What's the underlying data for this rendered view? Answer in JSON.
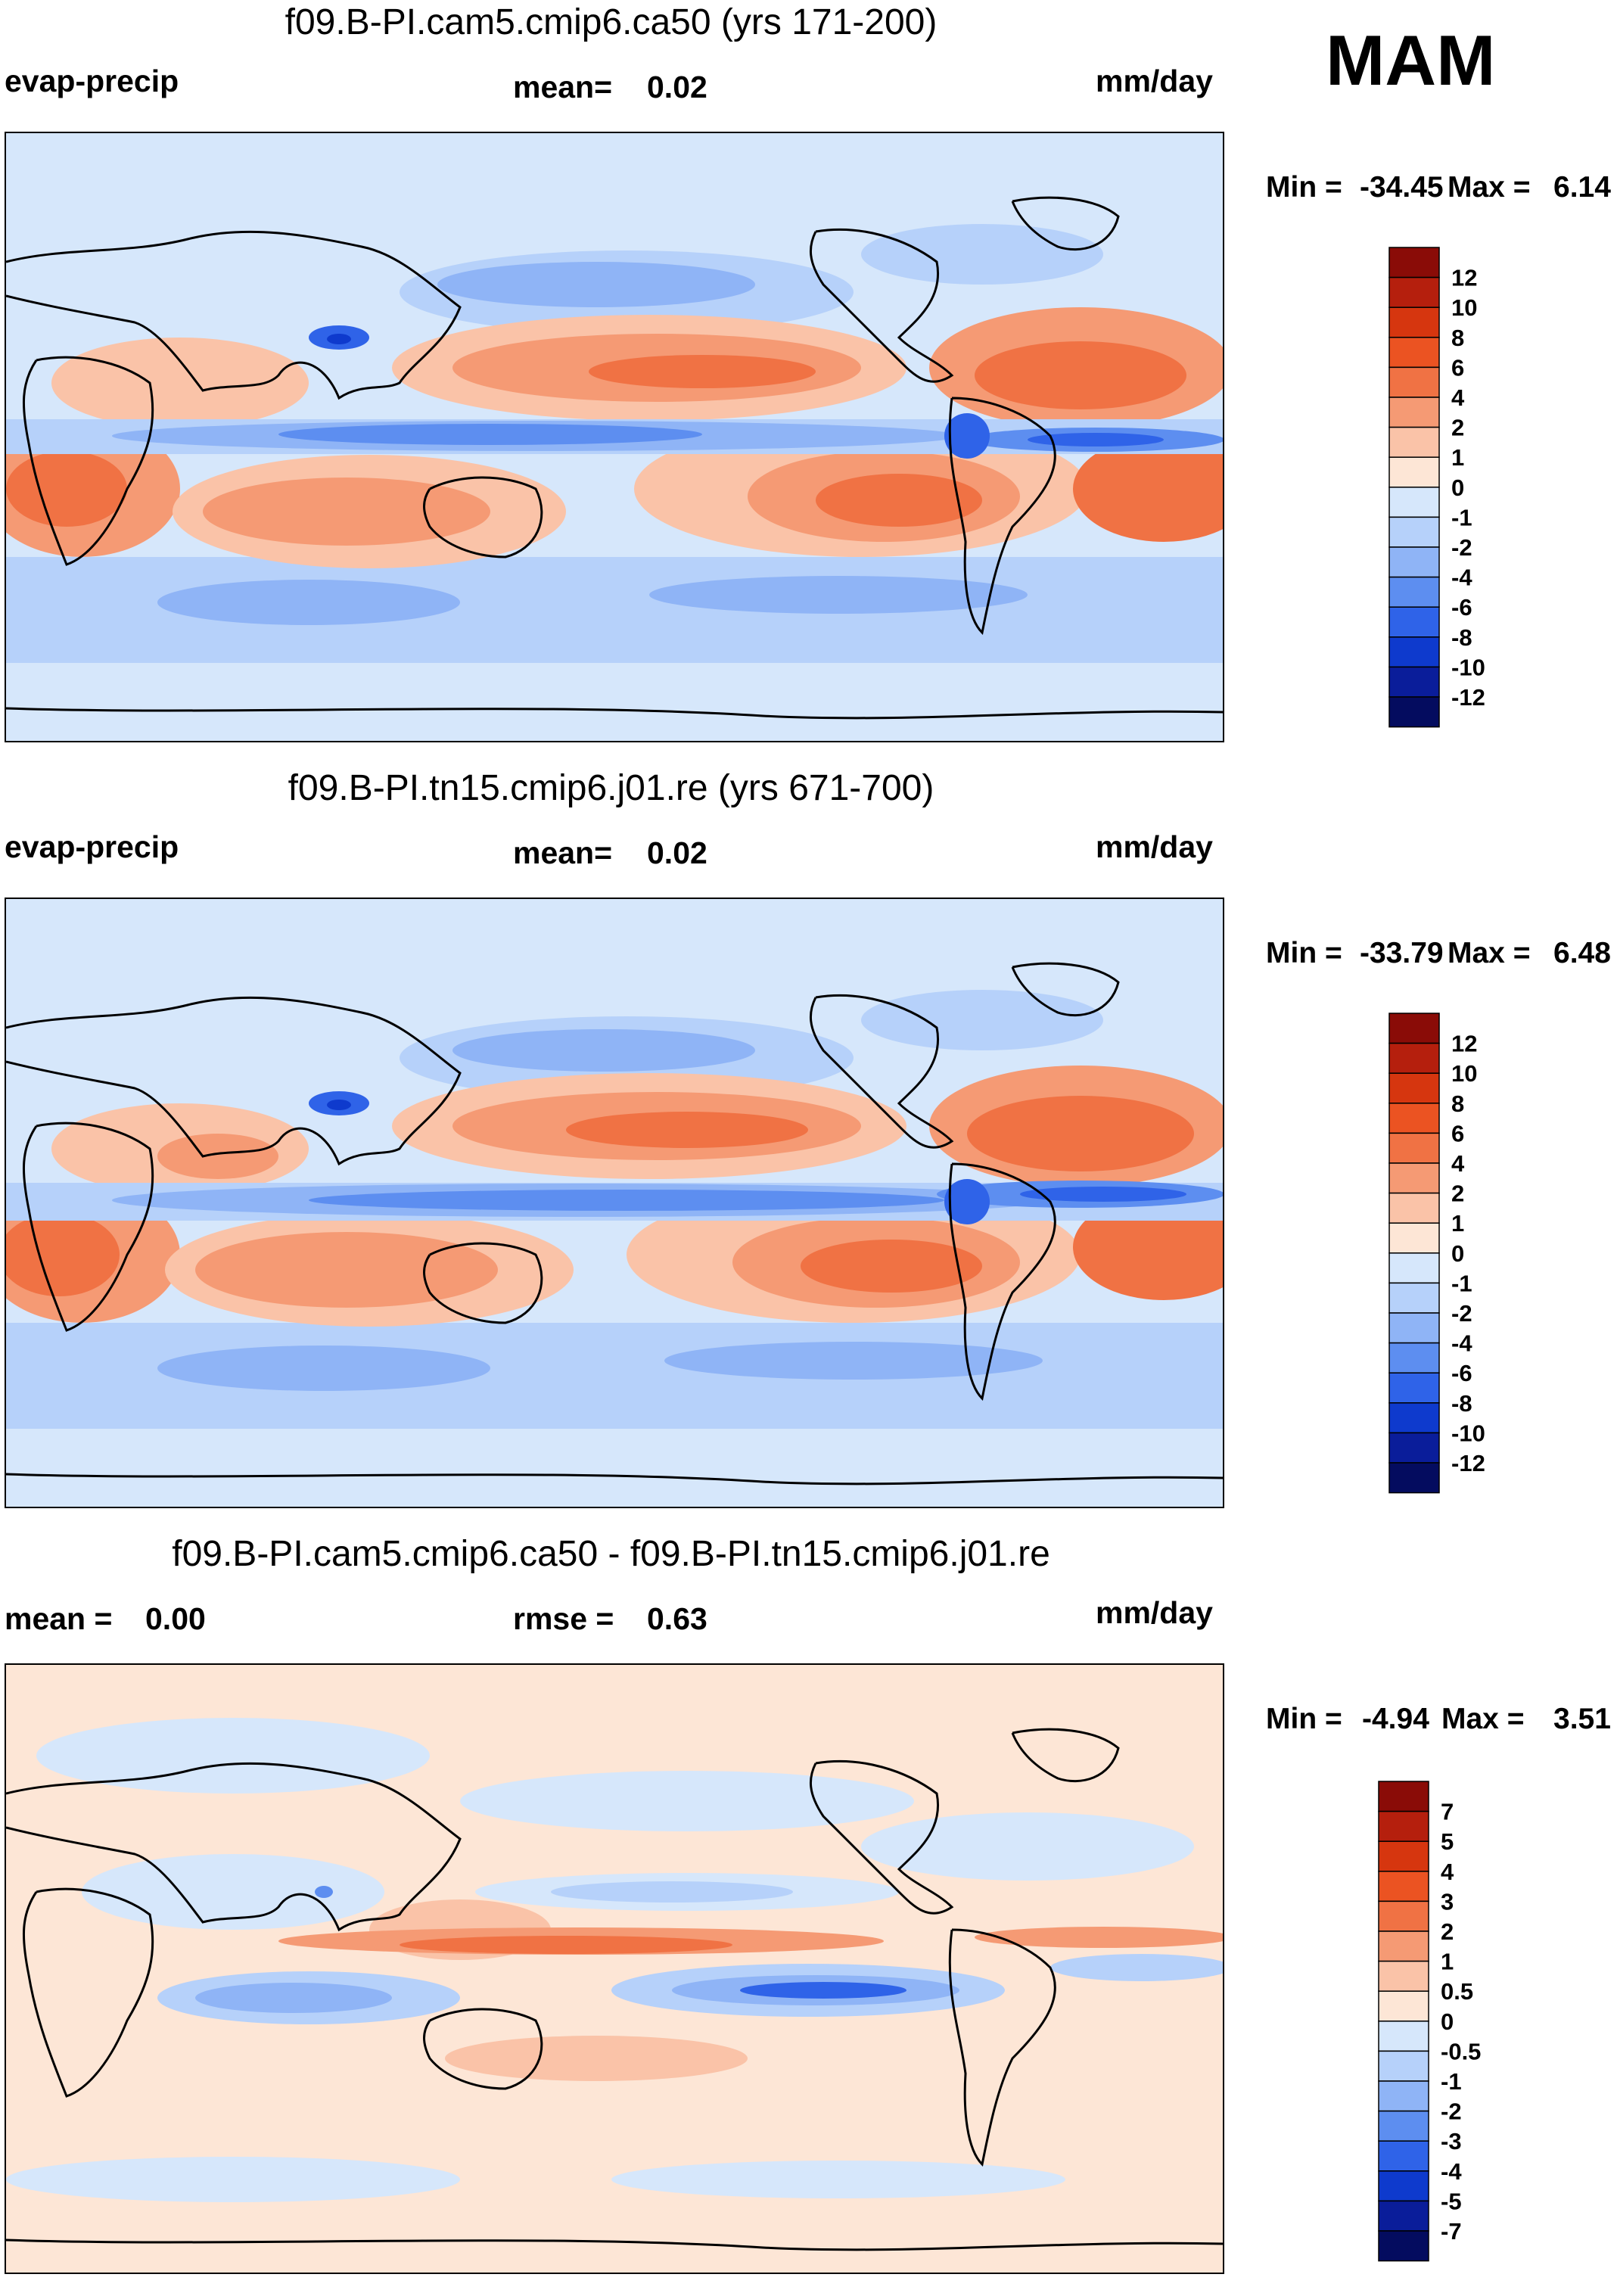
{
  "season": "MAM",
  "panels": [
    {
      "title": "f09.B-PI.cam5.cmip6.ca50 (yrs 171-200)",
      "left_label": "evap-precip",
      "center_label": "mean=",
      "center_value": "0.02",
      "units": "mm/day",
      "min_label": "Min =",
      "min_value": "-34.45",
      "max_label": "Max =",
      "max_value": "6.14",
      "colorbar": {
        "levels": [
          "12",
          "10",
          "8",
          "6",
          "4",
          "2",
          "1",
          "0",
          "-1",
          "-2",
          "-4",
          "-6",
          "-8",
          "-10",
          "-12"
        ],
        "colors": [
          "#8a0c07",
          "#b51f0d",
          "#d6360f",
          "#eb5322",
          "#f07244",
          "#f59a74",
          "#fac3a8",
          "#fde6d6",
          "#d6e7fb",
          "#b6d1fa",
          "#8fb4f6",
          "#5d8ef0",
          "#2f63e8",
          "#0e3acd",
          "#0a1d9a",
          "#040c5f"
        ]
      }
    },
    {
      "title": "f09.B-PI.tn15.cmip6.j01.re (yrs 671-700)",
      "left_label": "evap-precip",
      "center_label": "mean=",
      "center_value": "0.02",
      "units": "mm/day",
      "min_label": "Min =",
      "min_value": "-33.79",
      "max_label": "Max =",
      "max_value": "6.48",
      "colorbar": {
        "levels": [
          "12",
          "10",
          "8",
          "6",
          "4",
          "2",
          "1",
          "0",
          "-1",
          "-2",
          "-4",
          "-6",
          "-8",
          "-10",
          "-12"
        ],
        "colors": [
          "#8a0c07",
          "#b51f0d",
          "#d6360f",
          "#eb5322",
          "#f07244",
          "#f59a74",
          "#fac3a8",
          "#fde6d6",
          "#d6e7fb",
          "#b6d1fa",
          "#8fb4f6",
          "#5d8ef0",
          "#2f63e8",
          "#0e3acd",
          "#0a1d9a",
          "#040c5f"
        ]
      }
    },
    {
      "title": "f09.B-PI.cam5.cmip6.ca50 - f09.B-PI.tn15.cmip6.j01.re",
      "left_label": "mean =",
      "left_value": "0.00",
      "center_label": "rmse =",
      "center_value": "0.63",
      "units": "mm/day",
      "min_label": "Min =",
      "min_value": "-4.94",
      "max_label": "Max =",
      "max_value": "3.51",
      "colorbar": {
        "levels": [
          "7",
          "5",
          "4",
          "3",
          "2",
          "1",
          "0.5",
          "0",
          "-0.5",
          "-1",
          "-2",
          "-3",
          "-4",
          "-5",
          "-7"
        ],
        "colors": [
          "#8a0c07",
          "#b51f0d",
          "#d6360f",
          "#eb5322",
          "#f07244",
          "#f59a74",
          "#fac3a8",
          "#fde6d6",
          "#d6e7fb",
          "#b6d1fa",
          "#8fb4f6",
          "#5d8ef0",
          "#2f63e8",
          "#0e3acd",
          "#0a1d9a",
          "#040c5f"
        ]
      }
    }
  ],
  "chart_data": [
    {
      "type": "heatmap",
      "title": "f09.B-PI.cam5.cmip6.ca50 (yrs 171-200)",
      "variable": "evap-precip",
      "units": "mm/day",
      "mean": 0.02,
      "min": -34.45,
      "max": 6.14,
      "contour_levels": [
        -12,
        -10,
        -8,
        -6,
        -4,
        -2,
        -1,
        0,
        1,
        2,
        4,
        6,
        8,
        10,
        12
      ],
      "projection": "global cylindrical equidistant, Pacific-centered"
    },
    {
      "type": "heatmap",
      "title": "f09.B-PI.tn15.cmip6.j01.re (yrs 671-700)",
      "variable": "evap-precip",
      "units": "mm/day",
      "mean": 0.02,
      "min": -33.79,
      "max": 6.48,
      "contour_levels": [
        -12,
        -10,
        -8,
        -6,
        -4,
        -2,
        -1,
        0,
        1,
        2,
        4,
        6,
        8,
        10,
        12
      ],
      "projection": "global cylindrical equidistant, Pacific-centered"
    },
    {
      "type": "heatmap",
      "title": "f09.B-PI.cam5.cmip6.ca50 - f09.B-PI.tn15.cmip6.j01.re",
      "variable": "difference",
      "units": "mm/day",
      "mean": 0.0,
      "rmse": 0.63,
      "min": -4.94,
      "max": 3.51,
      "contour_levels": [
        -7,
        -5,
        -4,
        -3,
        -2,
        -1,
        -0.5,
        0,
        0.5,
        1,
        2,
        3,
        4,
        5,
        7
      ],
      "projection": "global cylindrical equidistant, Pacific-centered"
    }
  ]
}
